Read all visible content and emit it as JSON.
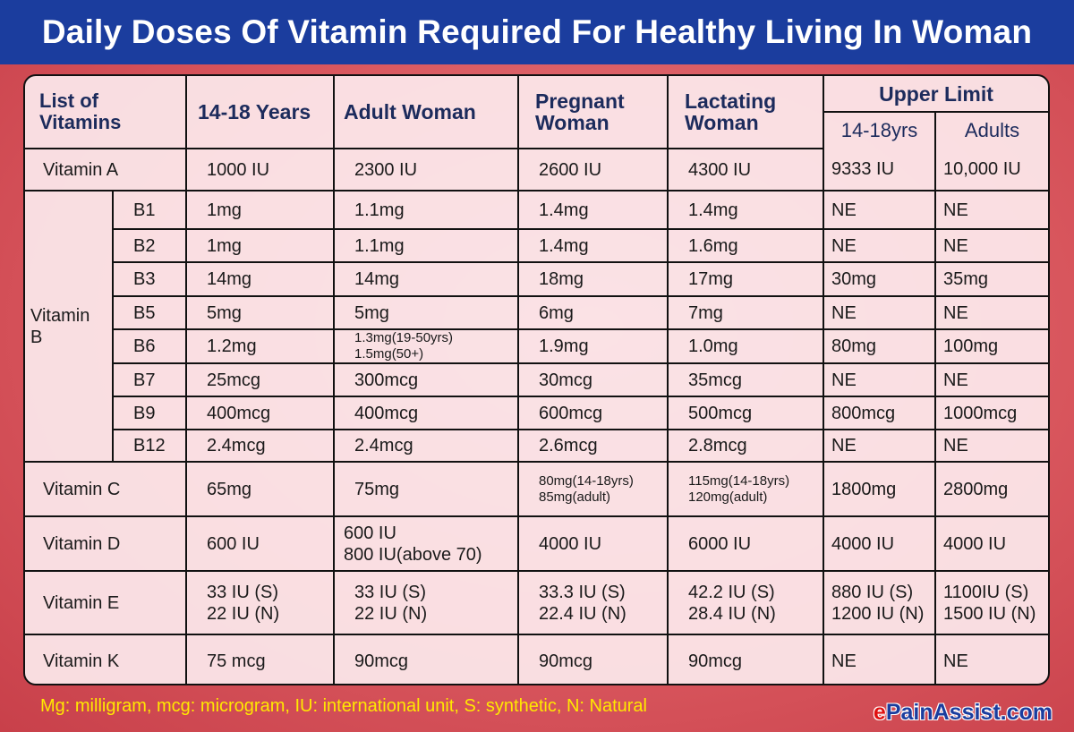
{
  "title": "Daily Doses Of Vitamin Required For Healthy Living In Woman",
  "header": {
    "list": "List of Vitamins",
    "teen": "14-18 Years",
    "adult": "Adult Woman",
    "pregnant": "Pregnant Woman",
    "lactating": "Lactating Woman",
    "upper": "Upper Limit",
    "upper_teen": "14-18yrs",
    "upper_adult": "Adults"
  },
  "vitamin_b_label": "Vitamin B",
  "rows": [
    {
      "name": "Vitamin A",
      "values": [
        "1000 IU",
        "2300 IU",
        "2600 IU",
        "4300 IU",
        "9333 IU",
        "10,000 IU"
      ]
    },
    {
      "sub": "B1",
      "values": [
        "1mg",
        "1.1mg",
        "1.4mg",
        "1.4mg",
        "NE",
        "NE"
      ]
    },
    {
      "sub": "B2",
      "values": [
        "1mg",
        "1.1mg",
        "1.4mg",
        "1.6mg",
        "NE",
        "NE"
      ]
    },
    {
      "sub": "B3",
      "values": [
        "14mg",
        "14mg",
        "18mg",
        "17mg",
        "30mg",
        "35mg"
      ]
    },
    {
      "sub": "B5",
      "values": [
        "5mg",
        "5mg",
        "6mg",
        "7mg",
        "NE",
        "NE"
      ]
    },
    {
      "sub": "B6",
      "values": [
        "1.2mg",
        "1.3mg(19-50yrs)\n1.5mg(50+)",
        "1.9mg",
        "1.0mg",
        "80mg",
        "100mg"
      ]
    },
    {
      "sub": "B7",
      "values": [
        "25mcg",
        "300mcg",
        "30mcg",
        "35mcg",
        "NE",
        "NE"
      ]
    },
    {
      "sub": "B9",
      "values": [
        "400mcg",
        "400mcg",
        "600mcg",
        "500mcg",
        "800mcg",
        "1000mcg"
      ]
    },
    {
      "sub": "B12",
      "values": [
        "2.4mcg",
        "2.4mcg",
        "2.6mcg",
        "2.8mcg",
        "NE",
        "NE"
      ]
    },
    {
      "name": "Vitamin C",
      "values": [
        "65mg",
        "75mg",
        "80mg(14-18yrs)\n85mg(adult)",
        "115mg(14-18yrs)\n120mg(adult)",
        "1800mg",
        "2800mg"
      ]
    },
    {
      "name": "Vitamin D",
      "values": [
        "600 IU",
        "600 IU\n800 IU(above 70)",
        "4000 IU",
        "6000 IU",
        "4000 IU",
        "4000 IU"
      ]
    },
    {
      "name": "Vitamin E",
      "values": [
        "33 IU (S)\n22 IU (N)",
        "33 IU (S)\n22 IU (N)",
        "33.3 IU (S)\n22.4 IU (N)",
        "42.2 IU (S)\n28.4 IU (N)",
        "880 IU (S)\n1200 IU (N)",
        "1100IU (S)\n1500 IU (N)"
      ]
    },
    {
      "name": "Vitamin K",
      "values": [
        "75 mcg",
        "90mcg",
        "90mcg",
        "90mcg",
        "NE",
        "NE"
      ]
    }
  ],
  "footer": "Mg: milligram, mcg: microgram, IU: international unit, S: synthetic, N: Natural",
  "logo": "ePainAssist.com",
  "colors": {
    "title_bar": "#1b3d9e",
    "footer_text": "#ffe800",
    "header_text": "#1c2b5c"
  }
}
